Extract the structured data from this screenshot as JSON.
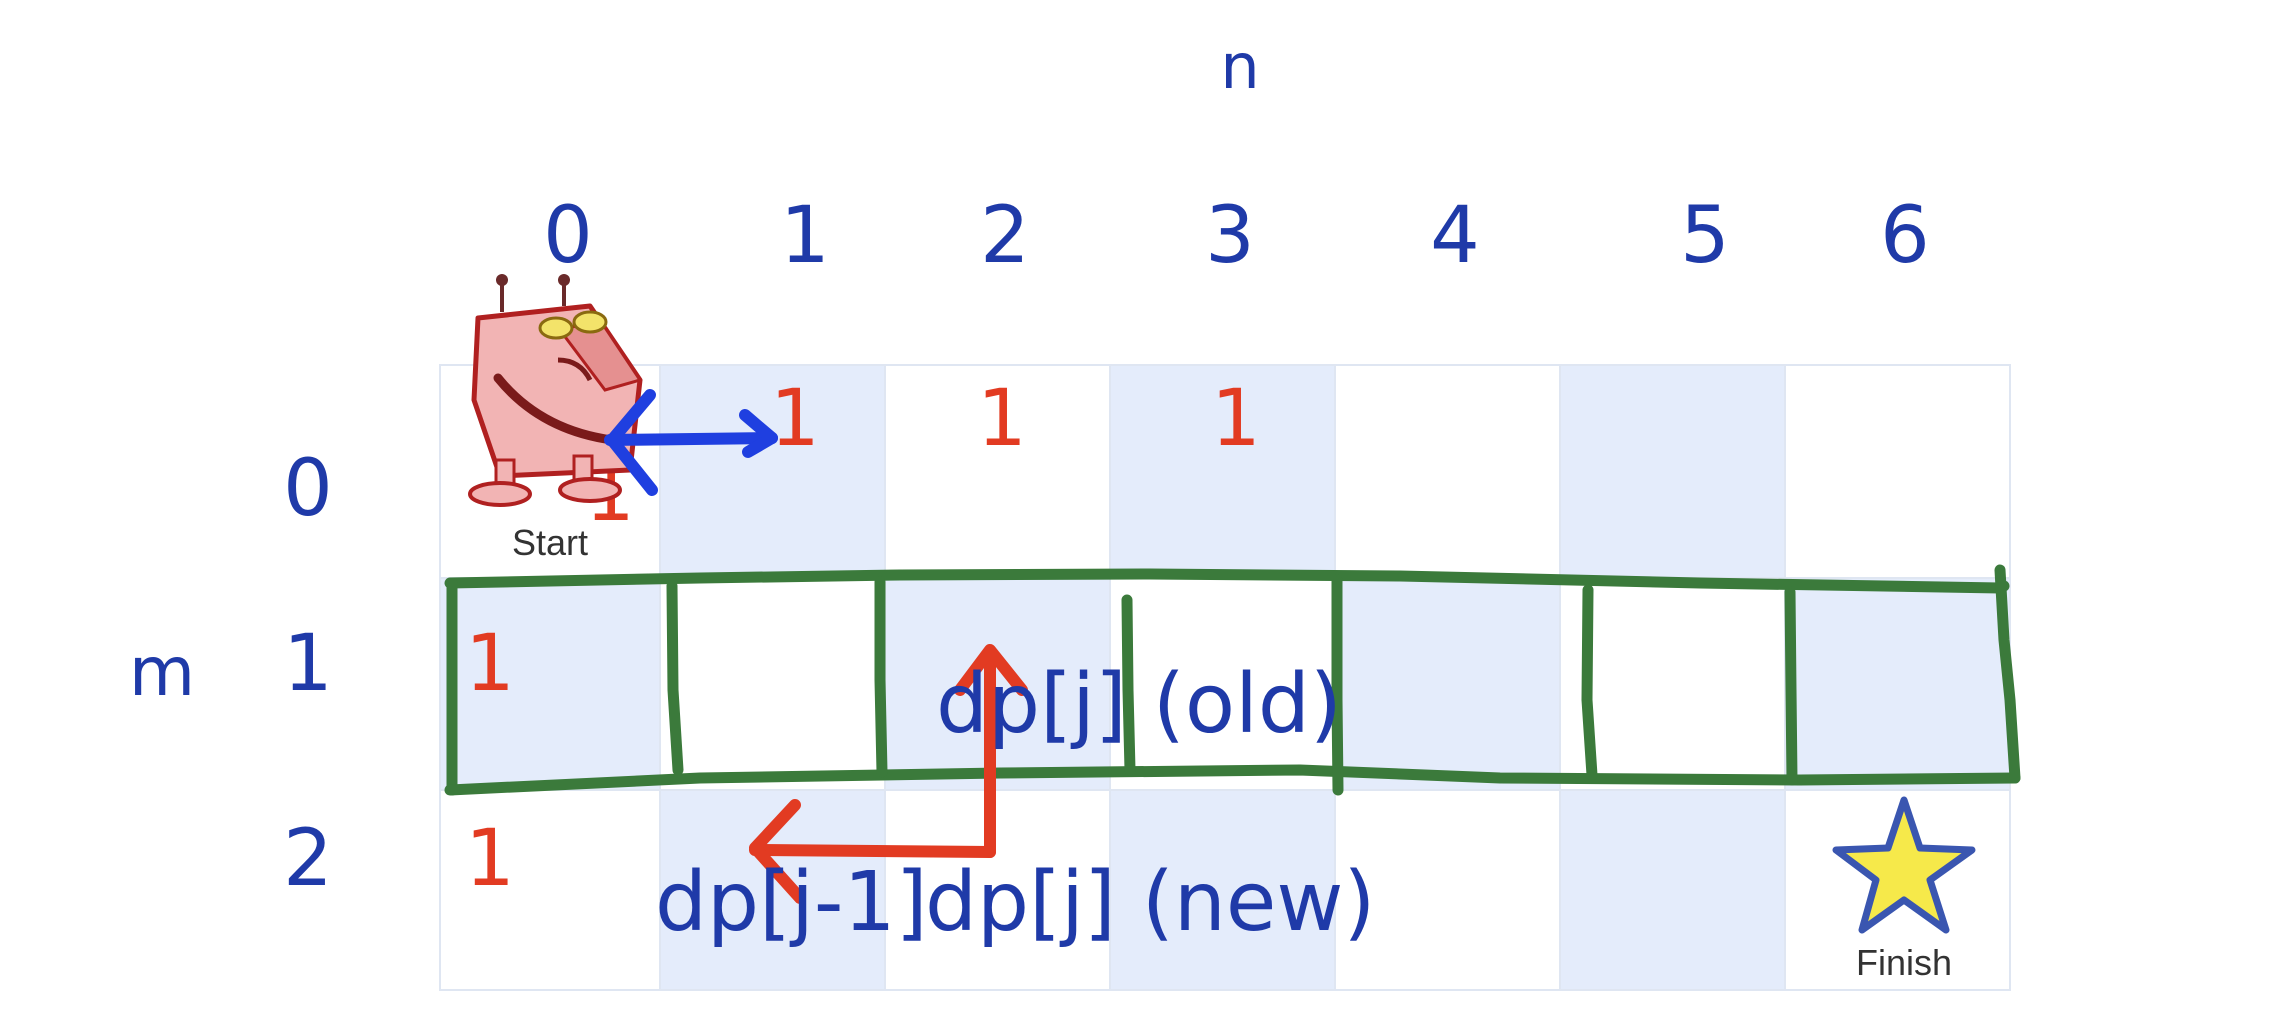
{
  "axis": {
    "n_label": "n",
    "m_label": "m",
    "columns": [
      "0",
      "1",
      "2",
      "3",
      "4",
      "5",
      "6"
    ],
    "rows": [
      "0",
      "1",
      "2"
    ]
  },
  "grid": {
    "cells": [
      {
        "row": 0,
        "col": 0,
        "value": "1"
      },
      {
        "row": 0,
        "col": 1,
        "value": "1"
      },
      {
        "row": 0,
        "col": 2,
        "value": "1"
      },
      {
        "row": 0,
        "col": 3,
        "value": "1"
      },
      {
        "row": 1,
        "col": 0,
        "value": "1"
      },
      {
        "row": 2,
        "col": 0,
        "value": "1"
      }
    ],
    "highlighted_row": 1
  },
  "robot": {
    "label": "Start"
  },
  "goal": {
    "label": "Finish"
  },
  "annotations": {
    "old_label": "dp[j] (old)",
    "left_new_label": "dp[j-1]",
    "new_label": "dp[j] (new)"
  },
  "colors": {
    "ink_blue": "#1f3aa8",
    "ink_red": "#e23b22",
    "ink_green": "#3b7a3b",
    "arrow_blue": "#1f3fe0",
    "tile_blue": "#e4ecfb",
    "grid_line": "#dfe6f2",
    "star_fill": "#f6e94a",
    "star_stroke": "#3a56b0",
    "robot_body": "#f2b4b4",
    "robot_edge": "#b02020"
  }
}
